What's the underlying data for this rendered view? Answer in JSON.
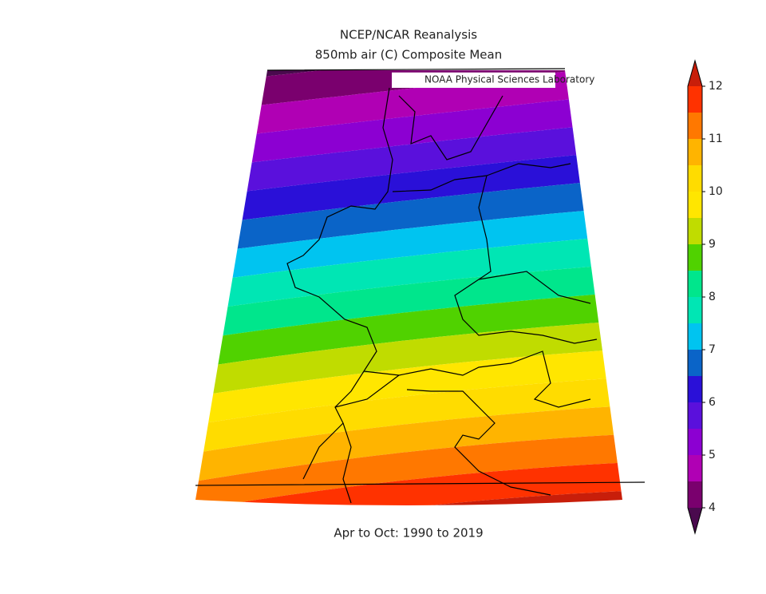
{
  "title": "NCEP/NCAR Reanalysis",
  "subtitle": "850mb air (C) Composite Mean",
  "credit": "NOAA Physical Sciences Laboratory",
  "period": "Apr to Oct: 1990 to 2019",
  "colorbar": {
    "ticks": [
      4,
      5,
      6,
      7,
      8,
      9,
      10,
      11,
      12
    ],
    "boundaries": [
      4,
      4.5,
      5,
      5.5,
      6,
      6.5,
      7,
      7.5,
      8,
      8.5,
      9,
      9.5,
      10,
      10.5,
      11,
      11.5,
      12
    ],
    "colors": [
      "#4a0a4e",
      "#7a006e",
      "#b000b4",
      "#8c00d2",
      "#5a10dc",
      "#2a10d8",
      "#0a64c8",
      "#00c4f0",
      "#00e6b4",
      "#00e68c",
      "#50d200",
      "#c0dc00",
      "#ffe600",
      "#ffdc00",
      "#ffb400",
      "#ff7800",
      "#ff3200",
      "#c81e0a"
    ]
  }
}
